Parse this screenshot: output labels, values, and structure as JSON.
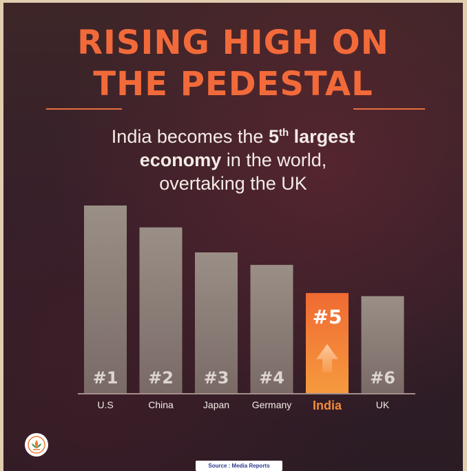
{
  "header": {
    "title_line1": "RISING HIGH ON",
    "title_line2": "THE PEDESTAL",
    "subtitle_part1": "India becomes the ",
    "subtitle_rank": "5",
    "subtitle_sup": "th",
    "subtitle_part2": " largest",
    "subtitle_bold2": "economy",
    "subtitle_part3": " in the world,",
    "subtitle_line3": "overtaking the UK"
  },
  "chart_data": {
    "type": "bar",
    "title": "",
    "categories": [
      "U.S",
      "China",
      "Japan",
      "Germany",
      "India",
      "UK"
    ],
    "rank_labels": [
      "#1",
      "#2",
      "#3",
      "#4",
      "#5",
      "#6"
    ],
    "values": [
      6,
      5.3,
      4.5,
      4.1,
      3.2,
      3.1
    ],
    "highlight": "India",
    "colors": {
      "bar": "#9a8f86",
      "highlight": "#f07a35",
      "text": "#f2ece8",
      "highlight_text": "#f28a3c"
    },
    "grid": false
  },
  "footer": {
    "source": "Source : Media Reports",
    "logo": "lotus-party-logo"
  }
}
